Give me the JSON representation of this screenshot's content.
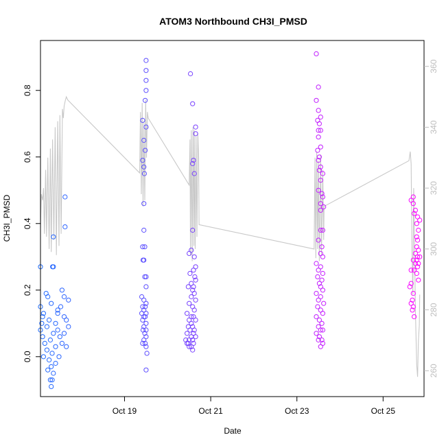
{
  "chart_data": {
    "type": "scatter",
    "title": "ATOM3 Northbound CH3I_PMSD",
    "xlabel": "Date",
    "ylabel": "CH3I_PMSD",
    "x_tick_labels": [
      "Oct 19",
      "Oct 21",
      "Oct 23",
      "Oct 25"
    ],
    "x_ticks_day": [
      19,
      21,
      23,
      25
    ],
    "xlim_day": [
      17.05,
      25.95
    ],
    "ylim": [
      -0.12,
      0.95
    ],
    "y_ticks": [
      0.0,
      0.2,
      0.4,
      0.6,
      0.8
    ],
    "y_tick_labels": [
      "0.0",
      "0.2",
      "0.4",
      "0.6",
      "0.8"
    ],
    "y2_ticks": [
      260,
      280,
      300,
      320,
      340,
      360
    ],
    "y2_tick_labels": [
      "260",
      "280",
      "300",
      "320",
      "340",
      "360"
    ],
    "y2lim": [
      251.5,
      368.5
    ],
    "color_gradient": [
      "#1f6bff",
      "#ff00ff"
    ],
    "secondary_line_color": "#c8c8c8",
    "clusters": [
      {
        "x_day": [
          17.0,
          17.7
        ],
        "points": [
          [
            17.05,
            0.27
          ],
          [
            17.35,
            0.36
          ],
          [
            17.33,
            0.27
          ],
          [
            17.35,
            0.27
          ],
          [
            17.62,
            0.48
          ],
          [
            17.62,
            0.39
          ],
          [
            17.18,
            0.19
          ],
          [
            17.22,
            0.18
          ],
          [
            17.55,
            0.2
          ],
          [
            17.7,
            0.17
          ],
          [
            17.6,
            0.18
          ],
          [
            17.05,
            0.15
          ],
          [
            17.12,
            0.13
          ],
          [
            17.3,
            0.16
          ],
          [
            17.45,
            0.14
          ],
          [
            17.52,
            0.15
          ],
          [
            17.1,
            0.12
          ],
          [
            17.25,
            0.11
          ],
          [
            17.4,
            0.1
          ],
          [
            17.65,
            0.11
          ],
          [
            17.08,
            0.1
          ],
          [
            17.2,
            0.09
          ],
          [
            17.35,
            0.07
          ],
          [
            17.45,
            0.08
          ],
          [
            17.6,
            0.07
          ],
          [
            17.1,
            0.06
          ],
          [
            17.28,
            0.05
          ],
          [
            17.5,
            0.06
          ],
          [
            17.15,
            0.04
          ],
          [
            17.4,
            0.03
          ],
          [
            17.55,
            0.04
          ],
          [
            17.65,
            0.03
          ],
          [
            17.2,
            0.02
          ],
          [
            17.32,
            0.01
          ],
          [
            17.48,
            0.0
          ],
          [
            17.25,
            -0.01
          ],
          [
            17.4,
            -0.02
          ],
          [
            17.3,
            -0.03
          ],
          [
            17.22,
            -0.04
          ],
          [
            17.35,
            -0.05
          ],
          [
            17.28,
            -0.07
          ],
          [
            17.32,
            -0.07
          ],
          [
            17.3,
            -0.09
          ],
          [
            17.12,
            0.0
          ],
          [
            17.6,
            0.12
          ],
          [
            17.7,
            0.09
          ],
          [
            17.05,
            0.08
          ],
          [
            17.45,
            0.13
          ]
        ]
      },
      {
        "x_day": [
          19.4,
          19.5
        ],
        "points": [
          [
            19.5,
            0.89
          ],
          [
            19.5,
            0.86
          ],
          [
            19.5,
            0.83
          ],
          [
            19.5,
            0.8
          ],
          [
            19.48,
            0.77
          ],
          [
            19.42,
            0.71
          ],
          [
            19.5,
            0.69
          ],
          [
            19.45,
            0.65
          ],
          [
            19.48,
            0.62
          ],
          [
            19.42,
            0.59
          ],
          [
            19.45,
            0.57
          ],
          [
            19.46,
            0.55
          ],
          [
            19.45,
            0.46
          ],
          [
            19.45,
            0.38
          ],
          [
            19.47,
            0.33
          ],
          [
            19.42,
            0.33
          ],
          [
            19.45,
            0.29
          ],
          [
            19.43,
            0.29
          ],
          [
            19.5,
            0.24
          ],
          [
            19.47,
            0.24
          ],
          [
            19.5,
            0.21
          ],
          [
            19.4,
            0.18
          ],
          [
            19.45,
            0.17
          ],
          [
            19.5,
            0.16
          ],
          [
            19.42,
            0.15
          ],
          [
            19.48,
            0.15
          ],
          [
            19.45,
            0.14
          ],
          [
            19.5,
            0.13
          ],
          [
            19.4,
            0.13
          ],
          [
            19.45,
            0.12
          ],
          [
            19.48,
            0.12
          ],
          [
            19.42,
            0.11
          ],
          [
            19.5,
            0.1
          ],
          [
            19.45,
            0.09
          ],
          [
            19.5,
            0.08
          ],
          [
            19.43,
            0.08
          ],
          [
            19.47,
            0.07
          ],
          [
            19.5,
            0.06
          ],
          [
            19.45,
            0.05
          ],
          [
            19.42,
            0.04
          ],
          [
            19.48,
            0.04
          ],
          [
            19.5,
            0.03
          ],
          [
            19.52,
            0.01
          ],
          [
            19.5,
            -0.04
          ]
        ]
      },
      {
        "x_day": [
          20.4,
          20.65
        ],
        "points": [
          [
            20.53,
            0.85
          ],
          [
            20.58,
            0.76
          ],
          [
            20.65,
            0.69
          ],
          [
            20.65,
            0.67
          ],
          [
            20.6,
            0.59
          ],
          [
            20.58,
            0.58
          ],
          [
            20.62,
            0.55
          ],
          [
            20.58,
            0.38
          ],
          [
            20.55,
            0.32
          ],
          [
            20.5,
            0.31
          ],
          [
            20.62,
            0.3
          ],
          [
            20.65,
            0.27
          ],
          [
            20.6,
            0.26
          ],
          [
            20.52,
            0.25
          ],
          [
            20.63,
            0.24
          ],
          [
            20.65,
            0.23
          ],
          [
            20.55,
            0.22
          ],
          [
            20.6,
            0.21
          ],
          [
            20.48,
            0.21
          ],
          [
            20.58,
            0.2
          ],
          [
            20.62,
            0.19
          ],
          [
            20.55,
            0.18
          ],
          [
            20.65,
            0.17
          ],
          [
            20.5,
            0.16
          ],
          [
            20.58,
            0.15
          ],
          [
            20.62,
            0.14
          ],
          [
            20.45,
            0.13
          ],
          [
            20.55,
            0.12
          ],
          [
            20.6,
            0.12
          ],
          [
            20.5,
            0.11
          ],
          [
            20.65,
            0.11
          ],
          [
            20.55,
            0.1
          ],
          [
            20.58,
            0.09
          ],
          [
            20.48,
            0.09
          ],
          [
            20.62,
            0.08
          ],
          [
            20.52,
            0.08
          ],
          [
            20.6,
            0.07
          ],
          [
            20.45,
            0.07
          ],
          [
            20.55,
            0.06
          ],
          [
            20.65,
            0.06
          ],
          [
            20.5,
            0.05
          ],
          [
            20.58,
            0.05
          ],
          [
            20.42,
            0.05
          ],
          [
            20.6,
            0.04
          ],
          [
            20.48,
            0.04
          ],
          [
            20.55,
            0.03
          ],
          [
            20.5,
            0.03
          ],
          [
            20.45,
            0.04
          ],
          [
            20.58,
            0.02
          ]
        ]
      },
      {
        "x_day": [
          23.4,
          23.65
        ],
        "points": [
          [
            23.45,
            0.91
          ],
          [
            23.5,
            0.81
          ],
          [
            23.45,
            0.77
          ],
          [
            23.5,
            0.74
          ],
          [
            23.55,
            0.72
          ],
          [
            23.48,
            0.71
          ],
          [
            23.52,
            0.7
          ],
          [
            23.5,
            0.68
          ],
          [
            23.55,
            0.68
          ],
          [
            23.5,
            0.66
          ],
          [
            23.55,
            0.63
          ],
          [
            23.48,
            0.62
          ],
          [
            23.52,
            0.6
          ],
          [
            23.5,
            0.59
          ],
          [
            23.55,
            0.57
          ],
          [
            23.52,
            0.56
          ],
          [
            23.6,
            0.55
          ],
          [
            23.55,
            0.53
          ],
          [
            23.5,
            0.5
          ],
          [
            23.58,
            0.49
          ],
          [
            23.6,
            0.48
          ],
          [
            23.55,
            0.46
          ],
          [
            23.55,
            0.44
          ],
          [
            23.62,
            0.45
          ],
          [
            23.55,
            0.38
          ],
          [
            23.6,
            0.38
          ],
          [
            23.5,
            0.35
          ],
          [
            23.58,
            0.33
          ],
          [
            23.55,
            0.31
          ],
          [
            23.6,
            0.3
          ],
          [
            23.45,
            0.28
          ],
          [
            23.55,
            0.27
          ],
          [
            23.5,
            0.26
          ],
          [
            23.6,
            0.25
          ],
          [
            23.48,
            0.24
          ],
          [
            23.58,
            0.23
          ],
          [
            23.52,
            0.22
          ],
          [
            23.55,
            0.21
          ],
          [
            23.6,
            0.2
          ],
          [
            23.45,
            0.19
          ],
          [
            23.55,
            0.18
          ],
          [
            23.5,
            0.17
          ],
          [
            23.62,
            0.16
          ],
          [
            23.48,
            0.15
          ],
          [
            23.55,
            0.14
          ],
          [
            23.6,
            0.13
          ],
          [
            23.45,
            0.12
          ],
          [
            23.52,
            0.11
          ],
          [
            23.58,
            0.1
          ],
          [
            23.5,
            0.09
          ],
          [
            23.55,
            0.08
          ],
          [
            23.6,
            0.08
          ],
          [
            23.45,
            0.07
          ],
          [
            23.52,
            0.06
          ],
          [
            23.58,
            0.05
          ],
          [
            23.5,
            0.05
          ],
          [
            23.6,
            0.04
          ],
          [
            23.55,
            0.03
          ]
        ]
      },
      {
        "x_day": [
          25.6,
          25.85
        ],
        "points": [
          [
            25.7,
            0.48
          ],
          [
            25.65,
            0.47
          ],
          [
            25.7,
            0.46
          ],
          [
            25.75,
            0.44
          ],
          [
            25.72,
            0.43
          ],
          [
            25.8,
            0.42
          ],
          [
            25.85,
            0.41
          ],
          [
            25.78,
            0.4
          ],
          [
            25.82,
            0.38
          ],
          [
            25.78,
            0.36
          ],
          [
            25.8,
            0.35
          ],
          [
            25.78,
            0.33
          ],
          [
            25.82,
            0.32
          ],
          [
            25.75,
            0.31
          ],
          [
            25.8,
            0.3
          ],
          [
            25.85,
            0.3
          ],
          [
            25.7,
            0.29
          ],
          [
            25.78,
            0.29
          ],
          [
            25.82,
            0.28
          ],
          [
            25.75,
            0.28
          ],
          [
            25.8,
            0.27
          ],
          [
            25.72,
            0.26
          ],
          [
            25.65,
            0.26
          ],
          [
            25.78,
            0.25
          ],
          [
            25.82,
            0.23
          ],
          [
            25.65,
            0.22
          ],
          [
            25.62,
            0.21
          ],
          [
            25.7,
            0.19
          ],
          [
            25.68,
            0.17
          ],
          [
            25.65,
            0.16
          ],
          [
            25.7,
            0.15
          ],
          [
            25.68,
            0.14
          ],
          [
            25.72,
            0.12
          ]
        ]
      }
    ],
    "secondary_line": [
      [
        17.05,
        307
      ],
      [
        17.07,
        318
      ],
      [
        17.1,
        316
      ],
      [
        17.12,
        320
      ],
      [
        17.14,
        305
      ],
      [
        17.17,
        326
      ],
      [
        17.19,
        304
      ],
      [
        17.22,
        330
      ],
      [
        17.25,
        300
      ],
      [
        17.28,
        333
      ],
      [
        17.3,
        299
      ],
      [
        17.33,
        336
      ],
      [
        17.36,
        303
      ],
      [
        17.39,
        340
      ],
      [
        17.42,
        298
      ],
      [
        17.45,
        342
      ],
      [
        17.48,
        301
      ],
      [
        17.5,
        344
      ],
      [
        17.53,
        305
      ],
      [
        17.56,
        346
      ],
      [
        17.58,
        343
      ],
      [
        17.6,
        347
      ],
      [
        17.63,
        349
      ],
      [
        17.65,
        350
      ],
      [
        17.68,
        349
      ],
      [
        19.35,
        325
      ],
      [
        19.37,
        345
      ],
      [
        19.39,
        318
      ],
      [
        19.41,
        348
      ],
      [
        19.43,
        314
      ],
      [
        19.45,
        342
      ],
      [
        19.47,
        316
      ],
      [
        19.49,
        349
      ],
      [
        19.51,
        330
      ],
      [
        19.53,
        345
      ],
      [
        19.55,
        343
      ],
      [
        20.5,
        321
      ],
      [
        20.52,
        336
      ],
      [
        20.53,
        298
      ],
      [
        20.55,
        339
      ],
      [
        20.57,
        296
      ],
      [
        20.59,
        340
      ],
      [
        20.61,
        301
      ],
      [
        20.62,
        339
      ],
      [
        20.64,
        300
      ],
      [
        20.66,
        337
      ],
      [
        20.68,
        304
      ],
      [
        20.7,
        338
      ],
      [
        20.72,
        330
      ],
      [
        20.73,
        308
      ],
      [
        23.4,
        300
      ],
      [
        23.42,
        330
      ],
      [
        23.44,
        297
      ],
      [
        23.46,
        332
      ],
      [
        23.48,
        300
      ],
      [
        23.5,
        329
      ],
      [
        23.52,
        296
      ],
      [
        23.55,
        331
      ],
      [
        23.57,
        298
      ],
      [
        23.6,
        326
      ],
      [
        23.62,
        303
      ],
      [
        23.63,
        314
      ],
      [
        25.6,
        329
      ],
      [
        25.63,
        332
      ],
      [
        25.65,
        328
      ],
      [
        25.67,
        300
      ],
      [
        25.69,
        285
      ],
      [
        25.71,
        320
      ],
      [
        25.73,
        300
      ],
      [
        25.75,
        280
      ],
      [
        25.78,
        262
      ],
      [
        25.8,
        258
      ],
      [
        25.82,
        270
      ],
      [
        25.84,
        275
      ],
      [
        25.85,
        285
      ]
    ]
  }
}
